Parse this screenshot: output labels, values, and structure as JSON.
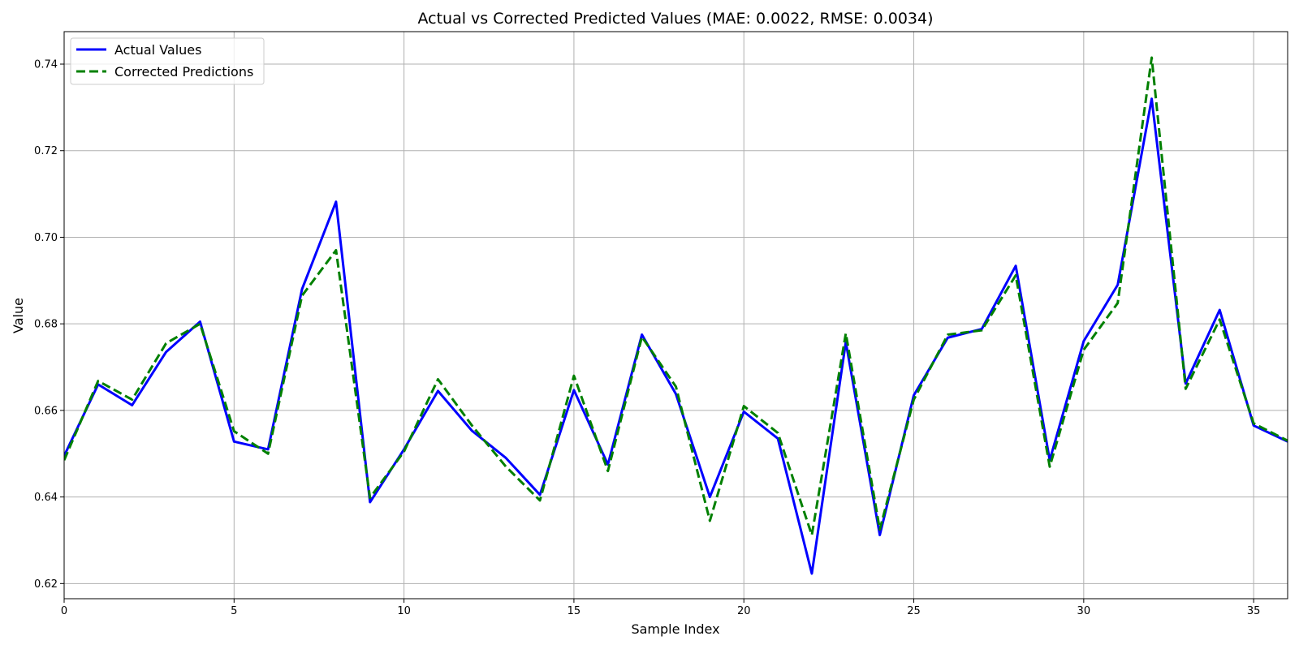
{
  "chart_data": {
    "type": "line",
    "title": "Actual vs Corrected Predicted Values (MAE: 0.0022, RMSE: 0.0034)",
    "xlabel": "Sample Index",
    "ylabel": "Value",
    "xlim": [
      0,
      36
    ],
    "ylim": [
      0.6165,
      0.7475
    ],
    "xticks": [
      0,
      5,
      10,
      15,
      20,
      25,
      30,
      35
    ],
    "yticks": [
      0.62,
      0.64,
      0.66,
      0.68,
      0.7,
      0.72,
      0.74
    ],
    "grid": true,
    "legend_position": "top-left",
    "x": [
      0,
      1,
      2,
      3,
      4,
      5,
      6,
      7,
      8,
      9,
      10,
      11,
      12,
      13,
      14,
      15,
      16,
      17,
      18,
      19,
      20,
      21,
      22,
      23,
      24,
      25,
      26,
      27,
      28,
      29,
      30,
      31,
      32,
      33,
      34,
      35,
      36
    ],
    "series": [
      {
        "name": "Actual Values",
        "color": "#0000ff",
        "style": "solid",
        "values": [
          0.6495,
          0.666,
          0.6612,
          0.6735,
          0.6805,
          0.6528,
          0.651,
          0.688,
          0.7082,
          0.6388,
          0.651,
          0.6645,
          0.6553,
          0.649,
          0.6405,
          0.6647,
          0.6475,
          0.6775,
          0.6638,
          0.64,
          0.6597,
          0.6535,
          0.6223,
          0.6758,
          0.6312,
          0.6635,
          0.6768,
          0.6788,
          0.6934,
          0.6485,
          0.676,
          0.689,
          0.732,
          0.6662,
          0.6832,
          0.6565,
          0.6528
        ]
      },
      {
        "name": "Corrected Predictions",
        "color": "#008000",
        "style": "dashed",
        "values": [
          0.6485,
          0.6668,
          0.6625,
          0.6755,
          0.68,
          0.6552,
          0.65,
          0.6865,
          0.697,
          0.6398,
          0.6505,
          0.6672,
          0.6565,
          0.647,
          0.6392,
          0.668,
          0.646,
          0.677,
          0.6655,
          0.6345,
          0.661,
          0.6548,
          0.6312,
          0.6778,
          0.6325,
          0.6625,
          0.6775,
          0.6785,
          0.6912,
          0.647,
          0.674,
          0.6848,
          0.7415,
          0.665,
          0.681,
          0.657,
          0.653
        ]
      }
    ]
  }
}
